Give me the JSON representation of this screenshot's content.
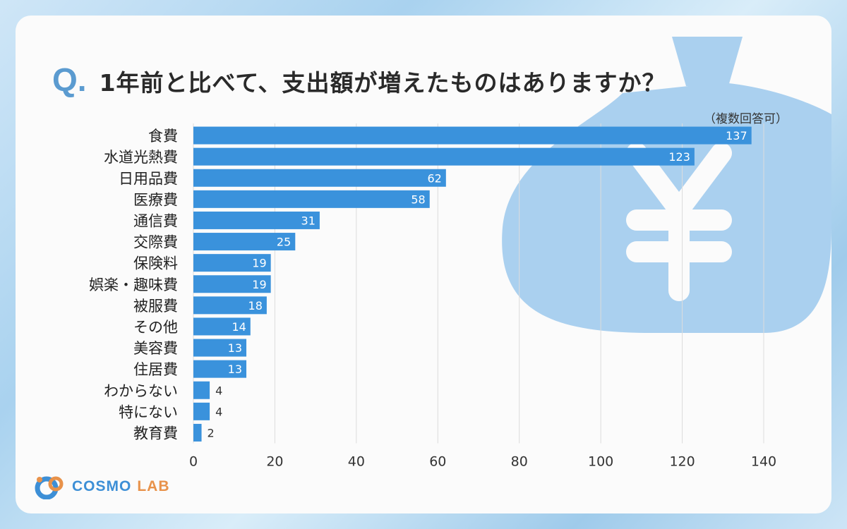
{
  "header": {
    "q_mark": "Q",
    "q_dot": ".",
    "title": "1年前と比べて、支出額が増えたものはありますか？",
    "subtitle": "（複数回答可）"
  },
  "logo": {
    "name_a": "COSMO",
    "name_b": "LAB",
    "icon": "cosmo-lab-logo-icon"
  },
  "colors": {
    "bar": "#3a92dc",
    "bg_art": "#8fc2eb",
    "grid": "#dcdcdc",
    "frame": "#a9d2ef"
  },
  "chart_data": {
    "type": "bar",
    "orientation": "horizontal",
    "categories": [
      "食費",
      "水道光熱費",
      "日用品費",
      "医療費",
      "通信費",
      "交際費",
      "保険料",
      "娯楽・趣味費",
      "被服費",
      "その他",
      "美容費",
      "住居費",
      "わからない",
      "特にない",
      "教育費"
    ],
    "values": [
      137,
      123,
      62,
      58,
      31,
      25,
      19,
      19,
      18,
      14,
      13,
      13,
      4,
      4,
      2
    ],
    "xlim": [
      0,
      140
    ],
    "xticks": [
      0,
      20,
      40,
      60,
      80,
      100,
      120,
      140
    ],
    "grid": true,
    "title": "1年前と比べて、支出額が増えたものはありますか？",
    "xlabel": "",
    "ylabel": ""
  }
}
